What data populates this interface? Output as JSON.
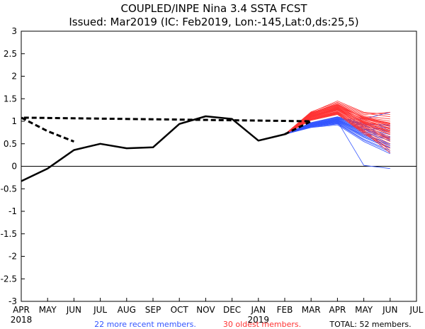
{
  "chart_data": {
    "type": "line",
    "title": "COUPLED/INPE Nina 3.4 SSTA FCST",
    "subtitle": "Issued: Mar2019 (IC: Feb2019, Lon:-145,Lat:0,ds:25,5)",
    "xlabel": "",
    "ylabel": "",
    "categories": [
      "APR",
      "MAY",
      "JUN",
      "JUL",
      "AUG",
      "SEP",
      "OCT",
      "NOV",
      "DEC",
      "JAN",
      "FEB",
      "MAR",
      "APR",
      "MAY",
      "JUN",
      "JUL"
    ],
    "year_labels": [
      {
        "label": "2018",
        "at": "APR"
      },
      {
        "label": "2019",
        "at": "JAN"
      }
    ],
    "ylim": [
      -3,
      3
    ],
    "yticks": [
      3,
      2.5,
      2,
      1.5,
      1,
      0.5,
      0,
      -0.5,
      -1,
      -1.5,
      -2,
      -2.5,
      -3
    ],
    "zero_line": true,
    "observed": {
      "name": "Observed",
      "color": "#000000",
      "categories": [
        "APR",
        "MAY",
        "JUN",
        "JUL",
        "AUG",
        "SEP",
        "OCT",
        "NOV",
        "DEC",
        "JAN",
        "FEB"
      ],
      "values": [
        -0.33,
        -0.05,
        0.36,
        0.5,
        0.4,
        0.42,
        0.94,
        1.11,
        1.05,
        0.57,
        0.71
      ]
    },
    "ensemble_mean": {
      "name": "Ensemble mean",
      "color": "#000000",
      "categories": [
        "FEB",
        "MAR",
        "APR",
        "MAY",
        "JUN"
      ],
      "values": [
        0.71,
        1.0,
        1.08,
        0.78,
        0.55
      ]
    },
    "ensemble_groups": [
      {
        "name": "recent",
        "color": "#3355ff",
        "members": [
          [
            0.71,
            0.92,
            1.0,
            0.74,
            0.57
          ],
          [
            0.71,
            0.9,
            0.98,
            0.68,
            0.45
          ],
          [
            0.71,
            0.94,
            1.04,
            0.82,
            0.62
          ],
          [
            0.71,
            0.96,
            1.08,
            0.9,
            0.75
          ],
          [
            0.71,
            0.88,
            0.95,
            0.6,
            0.35
          ],
          [
            0.71,
            0.93,
            1.02,
            0.8,
            0.86
          ],
          [
            0.71,
            0.91,
            0.99,
            0.72,
            0.5
          ],
          [
            0.71,
            0.97,
            1.1,
            0.95,
            0.9
          ],
          [
            0.71,
            0.89,
            0.96,
            0.64,
            0.4
          ],
          [
            0.71,
            0.95,
            1.05,
            0.85,
            0.7
          ],
          [
            0.71,
            0.92,
            1.01,
            0.76,
            0.6
          ],
          [
            0.71,
            0.86,
            0.92,
            0.55,
            0.28
          ],
          [
            0.71,
            0.94,
            1.03,
            0.83,
            0.66
          ],
          [
            0.71,
            0.93,
            1.06,
            0.88,
            0.8
          ],
          [
            0.71,
            0.9,
            0.97,
            0.7,
            0.48
          ],
          [
            0.71,
            0.95,
            1.07,
            0.92,
            0.85
          ],
          [
            0.71,
            0.87,
            0.94,
            0.58,
            0.32
          ],
          [
            0.71,
            0.91,
            1.0,
            0.02,
            -0.05
          ],
          [
            0.71,
            0.96,
            1.09,
            0.93,
            0.92
          ],
          [
            0.71,
            0.92,
            1.02,
            0.78,
            0.64
          ],
          [
            0.71,
            0.94,
            1.04,
            1.05,
            1.2
          ],
          [
            0.71,
            0.89,
            0.98,
            0.66,
            0.42
          ]
        ]
      },
      {
        "name": "oldest",
        "color": "#ff3333",
        "members": [
          [
            0.71,
            1.12,
            1.28,
            1.05,
            0.9
          ],
          [
            0.71,
            1.18,
            1.4,
            1.15,
            1.2
          ],
          [
            0.71,
            1.1,
            1.25,
            0.95,
            0.75
          ],
          [
            0.71,
            1.15,
            1.35,
            1.1,
            1.0
          ],
          [
            0.71,
            1.08,
            1.22,
            0.9,
            0.65
          ],
          [
            0.71,
            1.2,
            1.45,
            1.2,
            1.15
          ],
          [
            0.71,
            1.05,
            1.18,
            0.82,
            0.55
          ],
          [
            0.71,
            1.13,
            1.3,
            1.0,
            0.85
          ],
          [
            0.71,
            1.16,
            1.32,
            1.08,
            0.95
          ],
          [
            0.71,
            1.02,
            1.15,
            0.75,
            0.45
          ],
          [
            0.71,
            1.11,
            1.27,
            0.98,
            0.8
          ],
          [
            0.71,
            1.19,
            1.38,
            1.12,
            1.05
          ],
          [
            0.71,
            1.07,
            1.2,
            0.85,
            0.6
          ],
          [
            0.71,
            1.14,
            1.33,
            1.02,
            0.88
          ],
          [
            0.71,
            1.09,
            1.24,
            0.92,
            0.7
          ],
          [
            0.71,
            1.17,
            1.36,
            1.06,
            0.92
          ],
          [
            0.71,
            1.04,
            1.17,
            0.78,
            0.5
          ],
          [
            0.71,
            1.12,
            1.29,
            0.96,
            0.78
          ],
          [
            0.71,
            1.21,
            1.42,
            1.18,
            1.1
          ],
          [
            0.71,
            1.06,
            1.19,
            0.8,
            0.35
          ],
          [
            0.71,
            1.1,
            1.26,
            0.88,
            0.62
          ],
          [
            0.71,
            1.15,
            1.31,
            1.04,
            0.82
          ],
          [
            0.71,
            1.03,
            1.16,
            0.72,
            0.4
          ],
          [
            0.71,
            1.13,
            1.3,
            0.99,
            0.84
          ],
          [
            0.71,
            1.18,
            1.37,
            1.09,
            0.96
          ],
          [
            0.71,
            1.08,
            1.21,
            0.86,
            0.58
          ],
          [
            0.71,
            1.11,
            1.27,
            0.94,
            0.72
          ],
          [
            0.71,
            1.16,
            1.34,
            1.07,
            0.94
          ],
          [
            0.71,
            1.05,
            1.18,
            0.76,
            0.3
          ],
          [
            0.71,
            1.12,
            1.28,
            0.97,
            0.76
          ]
        ]
      }
    ],
    "footer": {
      "recent": "22 more recent members.",
      "oldest": "30 oldest members.",
      "total": "TOTAL: 52 members."
    }
  }
}
